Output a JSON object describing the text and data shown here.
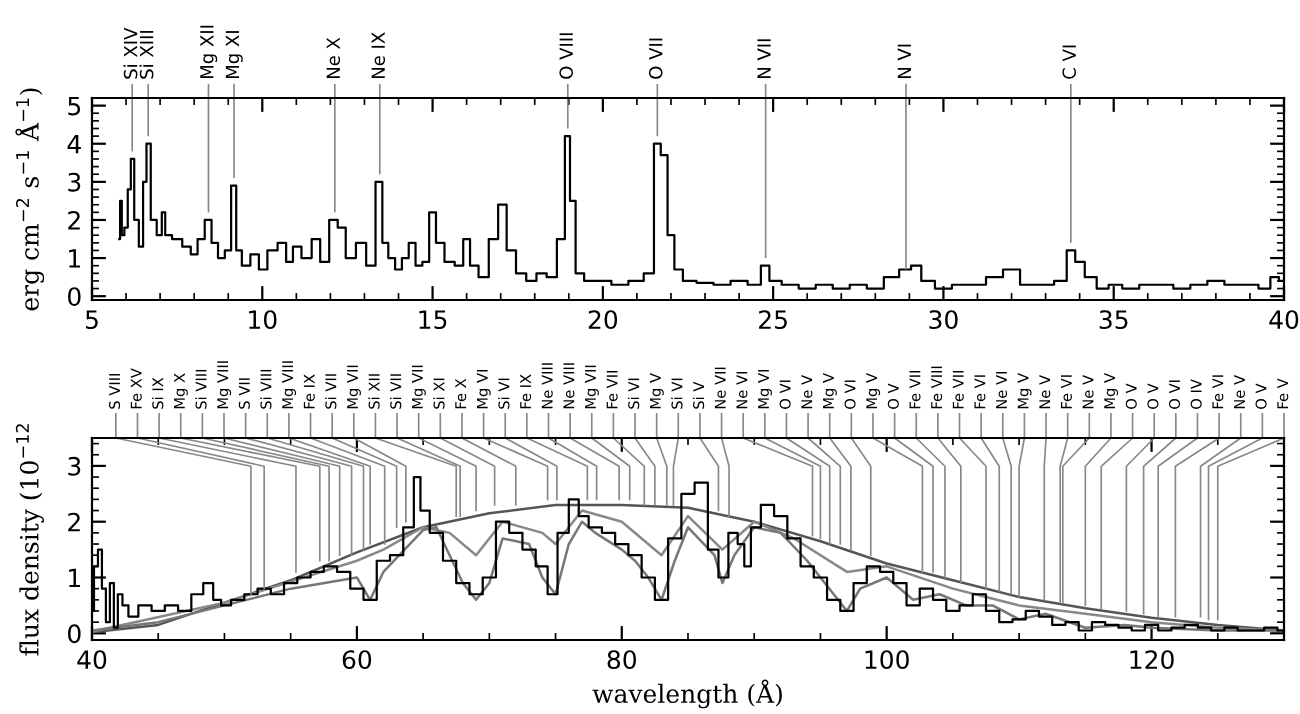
{
  "chart_data": [
    {
      "type": "step",
      "ylabel": "erg cm$^{−2}$ s$^{−1}$ Å$^{−1}$)",
      "xlim": [
        5,
        40
      ],
      "xticks": [
        5,
        10,
        15,
        20,
        25,
        30,
        35,
        40
      ],
      "ylim": [
        -0.1,
        5.2
      ],
      "yticks": [
        0,
        1,
        2,
        3,
        4,
        5
      ],
      "grid": false,
      "legend": false,
      "series": [
        {
          "color": "#000000",
          "x": [
            5.8,
            5.85,
            5.9,
            6.0,
            6.1,
            6.18,
            6.3,
            6.45,
            6.55,
            6.65,
            6.8,
            7.0,
            7.1,
            7.2,
            7.5,
            7.8,
            8.0,
            8.2,
            8.42,
            8.6,
            8.8,
            9.0,
            9.17,
            9.3,
            9.5,
            9.8,
            10.0,
            10.3,
            10.6,
            10.8,
            11.0,
            11.3,
            11.6,
            11.8,
            12.13,
            12.3,
            12.6,
            12.9,
            13.2,
            13.45,
            13.6,
            13.8,
            14.0,
            14.2,
            14.4,
            14.6,
            14.8,
            15.0,
            15.2,
            15.5,
            15.8,
            16.0,
            16.2,
            16.5,
            16.8,
            17.05,
            17.3,
            17.6,
            17.9,
            18.2,
            18.5,
            18.8,
            18.97,
            19.1,
            19.3,
            19.6,
            20.0,
            20.5,
            21.0,
            21.4,
            21.6,
            21.8,
            22.0,
            22.2,
            22.5,
            23.0,
            23.5,
            24.0,
            24.5,
            24.78,
            25.0,
            25.5,
            26.0,
            26.5,
            27.0,
            27.5,
            28.0,
            28.5,
            28.9,
            29.2,
            29.5,
            30.0,
            30.5,
            31.0,
            31.5,
            32.0,
            32.5,
            33.0,
            33.5,
            33.74,
            34.0,
            34.3,
            34.7,
            35.0,
            35.5,
            36.0,
            36.5,
            37.0,
            37.5,
            38.0,
            38.5,
            39.0,
            39.5,
            39.7,
            40.0
          ],
          "values": [
            1.5,
            2.5,
            1.6,
            1.8,
            2.8,
            3.6,
            2.0,
            1.3,
            3.0,
            4.0,
            2.0,
            1.6,
            2.2,
            1.6,
            1.5,
            1.3,
            1.1,
            1.5,
            2.0,
            1.4,
            1.0,
            1.2,
            2.9,
            1.2,
            0.8,
            1.1,
            0.7,
            1.2,
            1.4,
            0.9,
            1.3,
            1.0,
            1.5,
            0.9,
            2.0,
            1.8,
            1.0,
            1.4,
            0.8,
            3.0,
            1.4,
            1.0,
            0.7,
            1.0,
            1.4,
            0.8,
            0.9,
            2.2,
            1.4,
            0.9,
            0.8,
            1.5,
            0.8,
            0.5,
            1.5,
            2.4,
            1.2,
            0.6,
            0.4,
            0.6,
            0.5,
            1.5,
            4.2,
            2.5,
            0.6,
            0.4,
            0.4,
            0.3,
            0.4,
            0.6,
            4.0,
            3.7,
            1.6,
            0.7,
            0.4,
            0.35,
            0.3,
            0.4,
            0.3,
            0.8,
            0.4,
            0.3,
            0.2,
            0.3,
            0.2,
            0.3,
            0.2,
            0.5,
            0.7,
            0.8,
            0.4,
            0.2,
            0.3,
            0.3,
            0.5,
            0.7,
            0.3,
            0.3,
            0.4,
            1.2,
            0.9,
            0.5,
            0.2,
            0.3,
            0.2,
            0.3,
            0.3,
            0.2,
            0.3,
            0.4,
            0.3,
            0.3,
            0.2,
            0.5,
            0.4
          ]
        }
      ],
      "annotations": [
        {
          "text": "Si XIV",
          "x": 6.18,
          "y": 3.8
        },
        {
          "text": "Si XIII",
          "x": 6.65,
          "y": 4.2
        },
        {
          "text": "Mg XII",
          "x": 8.42,
          "y": 2.2
        },
        {
          "text": "Mg XI",
          "x": 9.17,
          "y": 3.1
        },
        {
          "text": "Ne X",
          "x": 12.13,
          "y": 2.2
        },
        {
          "text": "Ne IX",
          "x": 13.45,
          "y": 3.2
        },
        {
          "text": "O VIII",
          "x": 18.97,
          "y": 4.4
        },
        {
          "text": "O VII",
          "x": 21.6,
          "y": 4.2
        },
        {
          "text": "N VII",
          "x": 24.78,
          "y": 1.0
        },
        {
          "text": "N VI",
          "x": 28.9,
          "y": 0.7
        },
        {
          "text": "C VI",
          "x": 33.74,
          "y": 1.4
        }
      ]
    },
    {
      "type": "step",
      "xlabel": "wavelength (Å)",
      "ylabel": "flux density (10$^{−12}$",
      "xlim": [
        40,
        130
      ],
      "xticks": [
        40,
        60,
        80,
        100,
        120
      ],
      "ylim": [
        -0.12,
        3.5
      ],
      "yticks": [
        0,
        1,
        2,
        3
      ],
      "grid": false,
      "legend": false,
      "series": [
        {
          "type": "line",
          "color": "#555555",
          "x": [
            40,
            45,
            50,
            55,
            60,
            65,
            70,
            75,
            80,
            85,
            90,
            95,
            100,
            105,
            110,
            115,
            120,
            125,
            130
          ],
          "values": [
            0.02,
            0.15,
            0.55,
            0.95,
            1.45,
            1.9,
            2.15,
            2.3,
            2.3,
            2.25,
            2.0,
            1.65,
            1.25,
            0.95,
            0.65,
            0.45,
            0.28,
            0.15,
            0.05
          ]
        },
        {
          "type": "line",
          "color": "#888888",
          "x": [
            40,
            50,
            60,
            62,
            65,
            67,
            69,
            71,
            74,
            75,
            77,
            80,
            83,
            85,
            87.6,
            90,
            93,
            97,
            100,
            105,
            110,
            115,
            120,
            125,
            130
          ],
          "values": [
            0.03,
            0.55,
            1.3,
            1.5,
            1.9,
            1.8,
            1.4,
            2.0,
            1.8,
            1.6,
            2.2,
            2.0,
            1.4,
            2.1,
            1.5,
            2.0,
            1.7,
            1.1,
            1.2,
            0.8,
            0.5,
            0.35,
            0.2,
            0.1,
            0.05
          ]
        },
        {
          "type": "line",
          "color": "#777777",
          "x": [
            40,
            45,
            50,
            55,
            60,
            61,
            62,
            65,
            66,
            67,
            68,
            69,
            70,
            71,
            73,
            74,
            75,
            76,
            77,
            78,
            80,
            81,
            82,
            83,
            84,
            85,
            87,
            87.6,
            88.5,
            90,
            92,
            94,
            96,
            97,
            98,
            100,
            102,
            104,
            106,
            108,
            110,
            112,
            115,
            118,
            120,
            125,
            130
          ],
          "values": [
            0.05,
            0.2,
            0.5,
            0.8,
            1.0,
            0.6,
            1.1,
            1.85,
            1.9,
            1.4,
            0.9,
            0.6,
            0.9,
            1.7,
            1.6,
            1.0,
            0.7,
            1.6,
            2.0,
            1.8,
            1.5,
            1.3,
            1.0,
            0.6,
            1.3,
            1.9,
            1.4,
            0.9,
            1.4,
            1.9,
            1.8,
            1.3,
            0.7,
            0.4,
            0.8,
            1.0,
            0.6,
            0.7,
            0.5,
            0.5,
            0.25,
            0.35,
            0.1,
            0.15,
            0.1,
            0.05,
            0.05
          ]
        },
        {
          "type": "step",
          "color": "#000000",
          "x": [
            40,
            40.3,
            40.6,
            40.9,
            41.2,
            41.5,
            41.8,
            42.1,
            42.5,
            43,
            44,
            45,
            46,
            47,
            48,
            48.8,
            49.5,
            50,
            51,
            52,
            53,
            54,
            55,
            56,
            57,
            58,
            59,
            60,
            61,
            62,
            63,
            64,
            64.6,
            65,
            66,
            67,
            68,
            69,
            70,
            71,
            72,
            73,
            74,
            74.8,
            75.5,
            76.5,
            77,
            78,
            79,
            80,
            81,
            82,
            83,
            84,
            85,
            86,
            87,
            87.6,
            88.5,
            89,
            89.5,
            90,
            91,
            92,
            93,
            94,
            95,
            96,
            97,
            98,
            99,
            100,
            101,
            102,
            103,
            104,
            105,
            106,
            107,
            108,
            109,
            110,
            111,
            112,
            113,
            114,
            115,
            116,
            117,
            118,
            119,
            120,
            121,
            122,
            123,
            124,
            125,
            126,
            127,
            128,
            129,
            130
          ],
          "values": [
            0.4,
            1.2,
            1.5,
            0.8,
            0.2,
            0.9,
            0.1,
            0.7,
            0.5,
            0.3,
            0.5,
            0.4,
            0.5,
            0.4,
            0.7,
            0.9,
            0.6,
            0.5,
            0.6,
            0.7,
            0.8,
            0.7,
            0.9,
            1.0,
            1.1,
            1.2,
            1.1,
            0.8,
            0.6,
            1.3,
            1.4,
            1.9,
            2.8,
            2.2,
            1.8,
            1.3,
            0.9,
            0.7,
            1.0,
            2.0,
            1.8,
            1.5,
            1.2,
            0.7,
            1.8,
            2.4,
            2.1,
            1.9,
            1.8,
            1.6,
            1.4,
            1.0,
            0.6,
            1.7,
            2.5,
            2.7,
            1.5,
            1.0,
            1.8,
            1.6,
            1.2,
            1.9,
            2.3,
            2.1,
            1.7,
            1.2,
            1.0,
            0.6,
            0.4,
            0.9,
            1.2,
            1.1,
            0.9,
            0.5,
            0.8,
            0.6,
            0.4,
            0.5,
            0.7,
            0.4,
            0.2,
            0.25,
            0.4,
            0.3,
            0.15,
            0.2,
            0.05,
            0.2,
            0.15,
            0.1,
            0.05,
            0.15,
            0.05,
            0.1,
            0.15,
            0.1,
            0.05,
            0.1,
            0.05,
            0.05,
            0.1,
            0.05
          ]
        }
      ],
      "annotations": [
        {
          "text": "S VIII",
          "x": 52,
          "y": 0.7
        },
        {
          "text": "Fe XV",
          "x": 53,
          "y": 0.8
        },
        {
          "text": "Si IX",
          "x": 55.4,
          "y": 1.1
        },
        {
          "text": "Mg X",
          "x": 57.2,
          "y": 1.3
        },
        {
          "text": "Si VIII",
          "x": 57.9,
          "y": 1.3
        },
        {
          "text": "Mg VIII",
          "x": 58.7,
          "y": 1.4
        },
        {
          "text": "S VII",
          "x": 59.6,
          "y": 1.4
        },
        {
          "text": "Si VIII",
          "x": 60.5,
          "y": 1.5
        },
        {
          "text": "Mg VIII",
          "x": 61.0,
          "y": 1.6
        },
        {
          "text": "Fe IX",
          "x": 62.1,
          "y": 1.6
        },
        {
          "text": "Si VII",
          "x": 63.0,
          "y": 1.9
        },
        {
          "text": "Mg VII",
          "x": 63.7,
          "y": 2.0
        },
        {
          "text": "Si XII",
          "x": 67.5,
          "y": 2.1
        },
        {
          "text": "Si VII",
          "x": 67.8,
          "y": 2.1
        },
        {
          "text": "Mg VII",
          "x": 69.0,
          "y": 2.2
        },
        {
          "text": "Si XI",
          "x": 70.4,
          "y": 2.3
        },
        {
          "text": "Fe X",
          "x": 72.0,
          "y": 2.3
        },
        {
          "text": "Mg VI",
          "x": 74.4,
          "y": 2.4
        },
        {
          "text": "Si VI",
          "x": 75.1,
          "y": 2.4
        },
        {
          "text": "Fe IX",
          "x": 77.4,
          "y": 2.4
        },
        {
          "text": "Ne VIII",
          "x": 78.1,
          "y": 2.4
        },
        {
          "text": "Ne VIII",
          "x": 79.8,
          "y": 2.4
        },
        {
          "text": "Mg VII",
          "x": 80.6,
          "y": 2.4
        },
        {
          "text": "Fe VII",
          "x": 81.7,
          "y": 2.3
        },
        {
          "text": "Si VI",
          "x": 82.5,
          "y": 2.3
        },
        {
          "text": "Mg V",
          "x": 83.4,
          "y": 2.3
        },
        {
          "text": "Si VI",
          "x": 83.9,
          "y": 2.3
        },
        {
          "text": "Si V",
          "x": 87.3,
          "y": 2.2
        },
        {
          "text": "Ne VII",
          "x": 88.1,
          "y": 2.1
        },
        {
          "text": "Ne VI",
          "x": 94.4,
          "y": 1.75
        },
        {
          "text": "Mg VI",
          "x": 95.0,
          "y": 1.7
        },
        {
          "text": "O VI",
          "x": 95.7,
          "y": 1.6
        },
        {
          "text": "Ne V",
          "x": 96.5,
          "y": 1.6
        },
        {
          "text": "Mg V",
          "x": 97.3,
          "y": 1.5
        },
        {
          "text": "O VI",
          "x": 98.8,
          "y": 1.4
        },
        {
          "text": "Mg V",
          "x": 102.7,
          "y": 1.1
        },
        {
          "text": "O V",
          "x": 103.5,
          "y": 1.1
        },
        {
          "text": "Fe VII",
          "x": 104.4,
          "y": 1.0
        },
        {
          "text": "Fe VIII",
          "x": 105.6,
          "y": 0.9
        },
        {
          "text": "Fe VII",
          "x": 107.5,
          "y": 0.8
        },
        {
          "text": "Fe VI",
          "x": 108.5,
          "y": 0.75
        },
        {
          "text": "Ne VI",
          "x": 109.4,
          "y": 0.7
        },
        {
          "text": "Mg V",
          "x": 110.0,
          "y": 0.65
        },
        {
          "text": "Ne V",
          "x": 111.9,
          "y": 0.6
        },
        {
          "text": "Fe VI",
          "x": 113.1,
          "y": 0.55
        },
        {
          "text": "Ne V",
          "x": 113.3,
          "y": 0.55
        },
        {
          "text": "Mg V",
          "x": 115.0,
          "y": 0.5
        },
        {
          "text": "O V",
          "x": 116.2,
          "y": 0.45
        },
        {
          "text": "O V",
          "x": 118.1,
          "y": 0.4
        },
        {
          "text": "O VI",
          "x": 119.4,
          "y": 0.35
        },
        {
          "text": "O IV",
          "x": 120.5,
          "y": 0.3
        },
        {
          "text": "Fe VI",
          "x": 121.8,
          "y": 0.3
        },
        {
          "text": "Ne V",
          "x": 123.7,
          "y": 0.3
        },
        {
          "text": "O V",
          "x": 124.3,
          "y": 0.25
        },
        {
          "text": "Fe V",
          "x": 125.0,
          "y": 0.25
        }
      ]
    }
  ]
}
